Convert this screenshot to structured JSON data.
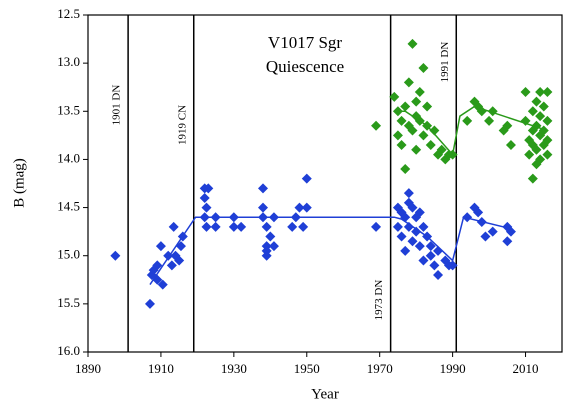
{
  "chart_data": {
    "type": "scatter",
    "title": "V1017 Sgr",
    "subtitle": "Quiescence",
    "x_label": "Year",
    "y_label": "B (mag)",
    "xlim": [
      1890,
      2020
    ],
    "xticks": [
      1890,
      1910,
      1930,
      1950,
      1970,
      1990,
      2010
    ],
    "ylim": [
      12.5,
      16
    ],
    "y_inverted": true,
    "yticks": [
      12.5,
      {
        "value": 13,
        "label": "13.0"
      },
      13.5,
      {
        "value": 14,
        "label": "14.0"
      },
      14.5,
      {
        "value": 15,
        "label": "15.0"
      },
      15.5,
      {
        "value": 16,
        "label": "16.0"
      }
    ],
    "events": [
      {
        "x": 1901,
        "label": "1901 DN"
      },
      {
        "x": 1919,
        "label": "1919 CN"
      },
      {
        "x": 1973,
        "label": "1973 DN"
      },
      {
        "x": 1991,
        "label": "1991 DN"
      }
    ],
    "series": [
      {
        "marker": "diamond",
        "color": "#1f3fd6",
        "x": [
          1897.5,
          1907,
          1907.5,
          1908,
          1909,
          1909,
          1910,
          1910.5,
          1912,
          1913,
          1913.5,
          1914,
          1915,
          1915.5,
          1916,
          1922,
          1922,
          1922.5,
          1922,
          1922.5,
          1923,
          1925,
          1925,
          1930,
          1930,
          1932,
          1938,
          1938,
          1938,
          1939,
          1939,
          1939,
          1939,
          1940,
          1941,
          1941,
          1946,
          1947,
          1948,
          1949,
          1950,
          1950,
          1969,
          1975,
          1975,
          1976,
          1976,
          1977,
          1977,
          1978,
          1978,
          1978,
          1979,
          1979,
          1980,
          1980,
          1981,
          1981,
          1982,
          1982,
          1983,
          1984,
          1984,
          1985,
          1986,
          1986,
          1988,
          1989,
          1990,
          1994,
          1996,
          1997,
          1998,
          1999,
          2001,
          2005,
          2005,
          2006
        ],
        "values": [
          15.0,
          15.5,
          15.2,
          15.15,
          15.1,
          15.25,
          14.9,
          15.3,
          15.0,
          15.1,
          14.7,
          15.0,
          15.05,
          14.9,
          14.8,
          14.3,
          14.4,
          14.5,
          14.6,
          14.7,
          14.3,
          14.7,
          14.6,
          14.6,
          14.7,
          14.7,
          14.3,
          14.5,
          14.6,
          14.7,
          14.9,
          15.0,
          14.95,
          14.8,
          14.6,
          14.9,
          14.7,
          14.6,
          14.5,
          14.7,
          14.5,
          14.2,
          14.7,
          14.5,
          14.7,
          14.8,
          14.55,
          14.6,
          14.95,
          14.35,
          14.45,
          14.7,
          14.5,
          14.85,
          14.6,
          14.75,
          14.55,
          14.9,
          14.7,
          15.05,
          14.8,
          14.9,
          15.0,
          15.1,
          15.2,
          14.95,
          15.05,
          15.1,
          15.1,
          14.6,
          14.5,
          14.55,
          14.65,
          14.8,
          14.75,
          14.7,
          14.85,
          14.75
        ]
      },
      {
        "marker": "line",
        "color": "#1f3fd6",
        "x": [
          1907,
          1919.5,
          1974,
          1976,
          1983,
          1990,
          1992,
          1993,
          2006
        ],
        "values": [
          15.3,
          14.6,
          14.6,
          14.62,
          14.8,
          15.05,
          14.75,
          14.6,
          14.72
        ]
      },
      {
        "marker": "diamond",
        "color": "#2a9a1a",
        "x": [
          1969,
          1974,
          1975,
          1975,
          1976,
          1976,
          1977,
          1977,
          1978,
          1978,
          1979,
          1979,
          1980,
          1980,
          1980,
          1981,
          1981,
          1982,
          1982,
          1983,
          1983,
          1984,
          1985,
          1986,
          1987,
          1988,
          1989,
          1990,
          1994,
          1996,
          1997,
          1998,
          2000,
          2001,
          2004,
          2005,
          2006,
          2010,
          2010,
          2011,
          2011,
          2012,
          2012,
          2012,
          2013,
          2013,
          2013,
          2014,
          2014,
          2014,
          2014,
          2015,
          2015,
          2015,
          2016,
          2016,
          2016,
          2016,
          2013,
          2012
        ],
        "values": [
          13.65,
          13.35,
          13.5,
          13.75,
          13.6,
          13.85,
          14.1,
          13.45,
          13.2,
          13.65,
          12.8,
          13.7,
          13.4,
          13.55,
          13.9,
          13.3,
          13.6,
          13.05,
          13.75,
          13.45,
          13.65,
          13.85,
          13.7,
          13.95,
          13.9,
          14.0,
          13.95,
          13.95,
          13.6,
          13.4,
          13.45,
          13.5,
          13.6,
          13.5,
          13.7,
          13.65,
          13.85,
          13.3,
          13.6,
          13.8,
          13.95,
          13.5,
          13.7,
          14.2,
          13.4,
          13.65,
          13.9,
          13.3,
          13.55,
          13.75,
          14.0,
          13.45,
          13.7,
          13.85,
          13.3,
          13.6,
          13.8,
          13.95,
          14.05,
          13.85
        ]
      },
      {
        "marker": "line",
        "color": "#2a9a1a",
        "x": [
          1974,
          1977,
          1983,
          1990,
          1992,
          1996,
          2016
        ],
        "values": [
          13.5,
          13.5,
          13.65,
          13.95,
          13.55,
          13.45,
          13.7
        ]
      }
    ]
  }
}
